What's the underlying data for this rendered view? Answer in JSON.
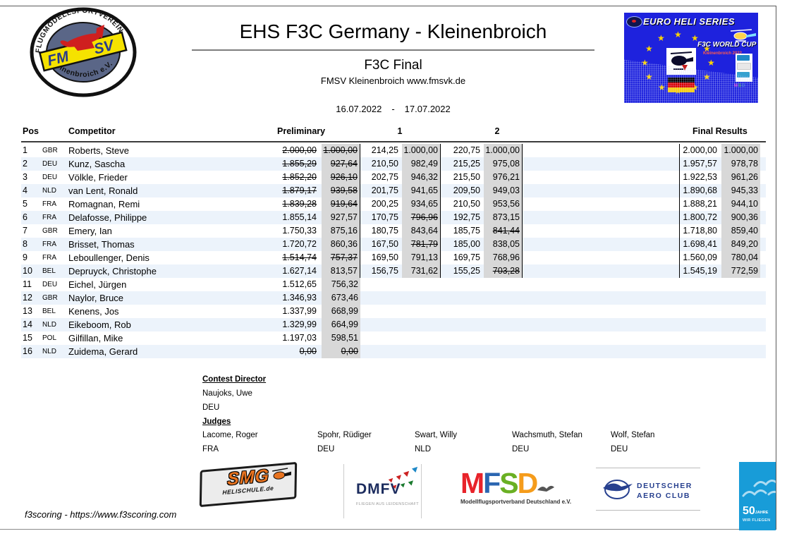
{
  "page": {
    "title": "EHS F3C Germany - Kleinenbroich",
    "subtitle": "F3C Final",
    "organizer": "FMSV Kleinenbroich www.fmsvk.de",
    "date_from": "16.07.2022",
    "date_sep": "-",
    "date_to": "17.07.2022",
    "footer": "f3scoring - https://www.f3scoring.com"
  },
  "club_logo": {
    "ring_text_top": "FLUGMODELLSPORTVEREIN",
    "band_left": "FM",
    "band_right": "SV",
    "ring_text_bottom": "Kleinenbroich e.V."
  },
  "ehs_logo": {
    "title": "EURO HELI SERIES",
    "subtitle": "F3C WORLD CUP",
    "note": "Kleinenbroich 2022",
    "mini_letters": "MSD"
  },
  "table": {
    "headers": {
      "pos": "Pos",
      "competitor": "Competitor",
      "preliminary": "Preliminary",
      "round1": "1",
      "round2": "2",
      "final": "Final Results"
    },
    "rows": [
      {
        "pos": "1",
        "country": "GBR",
        "name": "Roberts, Steve",
        "prelim": [
          "2.000,00",
          "1.000,00"
        ],
        "prelim_strike": [
          true,
          true
        ],
        "r1": [
          "214,25",
          "1.000,00"
        ],
        "r1_strike": [
          false,
          false
        ],
        "r2": [
          "220,75",
          "1.000,00"
        ],
        "r2_strike": [
          false,
          false
        ],
        "final": [
          "2.000,00",
          "1.000,00"
        ]
      },
      {
        "pos": "2",
        "country": "DEU",
        "name": "Kunz, Sascha",
        "prelim": [
          "1.855,29",
          "927,64"
        ],
        "prelim_strike": [
          true,
          true
        ],
        "r1": [
          "210,50",
          "982,49"
        ],
        "r1_strike": [
          false,
          false
        ],
        "r2": [
          "215,25",
          "975,08"
        ],
        "r2_strike": [
          false,
          false
        ],
        "final": [
          "1.957,57",
          "978,78"
        ]
      },
      {
        "pos": "3",
        "country": "DEU",
        "name": "Völkle, Frieder",
        "prelim": [
          "1.852,20",
          "926,10"
        ],
        "prelim_strike": [
          true,
          true
        ],
        "r1": [
          "202,75",
          "946,32"
        ],
        "r1_strike": [
          false,
          false
        ],
        "r2": [
          "215,50",
          "976,21"
        ],
        "r2_strike": [
          false,
          false
        ],
        "final": [
          "1.922,53",
          "961,26"
        ]
      },
      {
        "pos": "4",
        "country": "NLD",
        "name": "van Lent, Ronald",
        "prelim": [
          "1.879,17",
          "939,58"
        ],
        "prelim_strike": [
          true,
          true
        ],
        "r1": [
          "201,75",
          "941,65"
        ],
        "r1_strike": [
          false,
          false
        ],
        "r2": [
          "209,50",
          "949,03"
        ],
        "r2_strike": [
          false,
          false
        ],
        "final": [
          "1.890,68",
          "945,33"
        ]
      },
      {
        "pos": "5",
        "country": "FRA",
        "name": "Romagnan, Remi",
        "prelim": [
          "1.839,28",
          "919,64"
        ],
        "prelim_strike": [
          true,
          true
        ],
        "r1": [
          "200,25",
          "934,65"
        ],
        "r1_strike": [
          false,
          false
        ],
        "r2": [
          "210,50",
          "953,56"
        ],
        "r2_strike": [
          false,
          false
        ],
        "final": [
          "1.888,21",
          "944,10"
        ]
      },
      {
        "pos": "6",
        "country": "FRA",
        "name": "Delafosse, Philippe",
        "prelim": [
          "1.855,14",
          "927,57"
        ],
        "prelim_strike": [
          false,
          false
        ],
        "r1": [
          "170,75",
          "796,96"
        ],
        "r1_strike": [
          false,
          true
        ],
        "r2": [
          "192,75",
          "873,15"
        ],
        "r2_strike": [
          false,
          false
        ],
        "final": [
          "1.800,72",
          "900,36"
        ]
      },
      {
        "pos": "7",
        "country": "GBR",
        "name": "Emery, Ian",
        "prelim": [
          "1.750,33",
          "875,16"
        ],
        "prelim_strike": [
          false,
          false
        ],
        "r1": [
          "180,75",
          "843,64"
        ],
        "r1_strike": [
          false,
          false
        ],
        "r2": [
          "185,75",
          "841,44"
        ],
        "r2_strike": [
          false,
          true
        ],
        "final": [
          "1.718,80",
          "859,40"
        ]
      },
      {
        "pos": "8",
        "country": "FRA",
        "name": "Brisset, Thomas",
        "prelim": [
          "1.720,72",
          "860,36"
        ],
        "prelim_strike": [
          false,
          false
        ],
        "r1": [
          "167,50",
          "781,79"
        ],
        "r1_strike": [
          false,
          true
        ],
        "r2": [
          "185,00",
          "838,05"
        ],
        "r2_strike": [
          false,
          false
        ],
        "final": [
          "1.698,41",
          "849,20"
        ]
      },
      {
        "pos": "9",
        "country": "FRA",
        "name": "Leboullenger, Denis",
        "prelim": [
          "1.514,74",
          "757,37"
        ],
        "prelim_strike": [
          true,
          true
        ],
        "r1": [
          "169,50",
          "791,13"
        ],
        "r1_strike": [
          false,
          false
        ],
        "r2": [
          "169,75",
          "768,96"
        ],
        "r2_strike": [
          false,
          false
        ],
        "final": [
          "1.560,09",
          "780,04"
        ]
      },
      {
        "pos": "10",
        "country": "BEL",
        "name": "Depruyck, Christophe",
        "prelim": [
          "1.627,14",
          "813,57"
        ],
        "prelim_strike": [
          false,
          false
        ],
        "r1": [
          "156,75",
          "731,62"
        ],
        "r1_strike": [
          false,
          false
        ],
        "r2": [
          "155,25",
          "703,28"
        ],
        "r2_strike": [
          false,
          true
        ],
        "final": [
          "1.545,19",
          "772,59"
        ]
      },
      {
        "pos": "11",
        "country": "DEU",
        "name": "Eichel, Jürgen",
        "prelim": [
          "1.512,65",
          "756,32"
        ],
        "prelim_strike": [
          false,
          false
        ],
        "r1": [],
        "r1_strike": [],
        "r2": [],
        "r2_strike": [],
        "final": []
      },
      {
        "pos": "12",
        "country": "GBR",
        "name": "Naylor, Bruce",
        "prelim": [
          "1.346,93",
          "673,46"
        ],
        "prelim_strike": [
          false,
          false
        ],
        "r1": [],
        "r1_strike": [],
        "r2": [],
        "r2_strike": [],
        "final": []
      },
      {
        "pos": "13",
        "country": "BEL",
        "name": "Kenens, Jos",
        "prelim": [
          "1.337,99",
          "668,99"
        ],
        "prelim_strike": [
          false,
          false
        ],
        "r1": [],
        "r1_strike": [],
        "r2": [],
        "r2_strike": [],
        "final": []
      },
      {
        "pos": "14",
        "country": "NLD",
        "name": "Eikeboom, Rob",
        "prelim": [
          "1.329,99",
          "664,99"
        ],
        "prelim_strike": [
          false,
          false
        ],
        "r1": [],
        "r1_strike": [],
        "r2": [],
        "r2_strike": [],
        "final": []
      },
      {
        "pos": "15",
        "country": "POL",
        "name": "Gilfillan, Mike",
        "prelim": [
          "1.197,03",
          "598,51"
        ],
        "prelim_strike": [
          false,
          false
        ],
        "r1": [],
        "r1_strike": [],
        "r2": [],
        "r2_strike": [],
        "final": []
      },
      {
        "pos": "16",
        "country": "NLD",
        "name": "Zuidema, Gerard",
        "prelim": [
          "0,00",
          "0,00"
        ],
        "prelim_strike": [
          true,
          true
        ],
        "r1": [],
        "r1_strike": [],
        "r2": [],
        "r2_strike": [],
        "final": []
      }
    ]
  },
  "officials": {
    "director_label": "Contest Director",
    "director": {
      "name": "Naujoks, Uwe",
      "country": "DEU"
    },
    "judges_label": "Judges",
    "judges": [
      {
        "name": "Lacome, Roger",
        "country": "FRA"
      },
      {
        "name": "Spohr, Rüdiger",
        "country": "DEU"
      },
      {
        "name": "Swart, Willy",
        "country": "NLD"
      },
      {
        "name": "Wachsmuth, Stefan",
        "country": "DEU"
      },
      {
        "name": "Wolf, Stefan",
        "country": "DEU"
      }
    ]
  },
  "sponsors": {
    "smg": {
      "name": "SMG",
      "sub": "HELISCHULE.de"
    },
    "dmfv": {
      "name": "DMFV",
      "tagline": "FLIEGEN AUS LEIDENSCHAFT"
    },
    "mfsd": {
      "letters": [
        "M",
        "F",
        "S",
        "D"
      ],
      "letter_colors": [
        "#e8232a",
        "#2b66b1",
        "#6ab023",
        "#f59c1b"
      ],
      "tagline": "Modellflugsportverband Deutschland e.V."
    },
    "daec": {
      "line1": "DEUTSCHER",
      "line2": "AERO CLUB"
    },
    "jubilee": {
      "big": "50",
      "small": "JAHRE",
      "sub": "WIR FLIEGEN"
    }
  },
  "colors": {
    "row_alt": "#ecf3fb",
    "score_column_bg": "#d8d8d8",
    "ehs_blue": "#1e22dd",
    "jubilee_blue": "#189cd8",
    "daec_blue": "#27408f"
  }
}
